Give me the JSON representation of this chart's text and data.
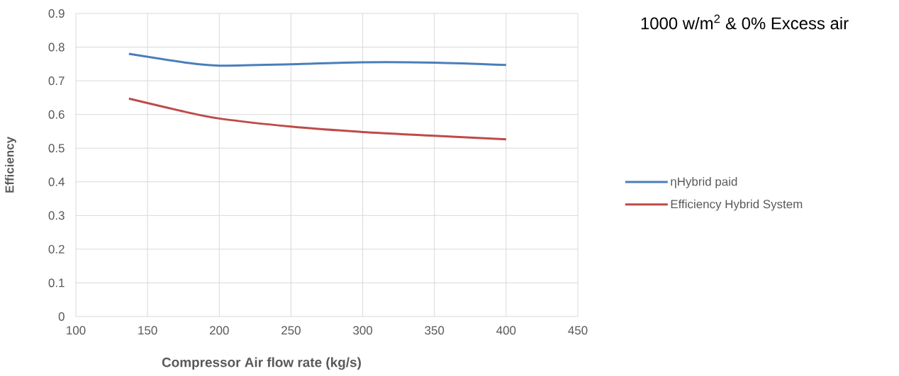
{
  "chart_data": {
    "type": "line",
    "title": "1000 w/m$^{2}$ & 0% Excess air",
    "xlabel": "Compressor Air flow rate (kg/s)",
    "ylabel": "Efficiency",
    "x": [
      137,
      175,
      200,
      250,
      300,
      350,
      400
    ],
    "series": [
      {
        "name": "ηHybrid paid",
        "color": "#4a7ebb",
        "values": [
          0.78,
          0.755,
          0.745,
          0.749,
          0.755,
          0.754,
          0.747
        ]
      },
      {
        "name": "Efficiency Hybrid System",
        "color": "#be4b48",
        "values": [
          0.647,
          0.609,
          0.588,
          0.564,
          0.548,
          0.537,
          0.526
        ]
      }
    ],
    "xlim": [
      100,
      450
    ],
    "xticks": [
      100,
      150,
      200,
      250,
      300,
      350,
      400,
      450
    ],
    "ylim": [
      0,
      0.9
    ],
    "yticks": [
      0,
      0.1,
      0.2,
      0.3,
      0.4,
      0.5,
      0.6,
      0.7,
      0.8,
      0.9
    ],
    "grid": true,
    "legend": "right",
    "marker": "none",
    "line_style": "solid"
  }
}
